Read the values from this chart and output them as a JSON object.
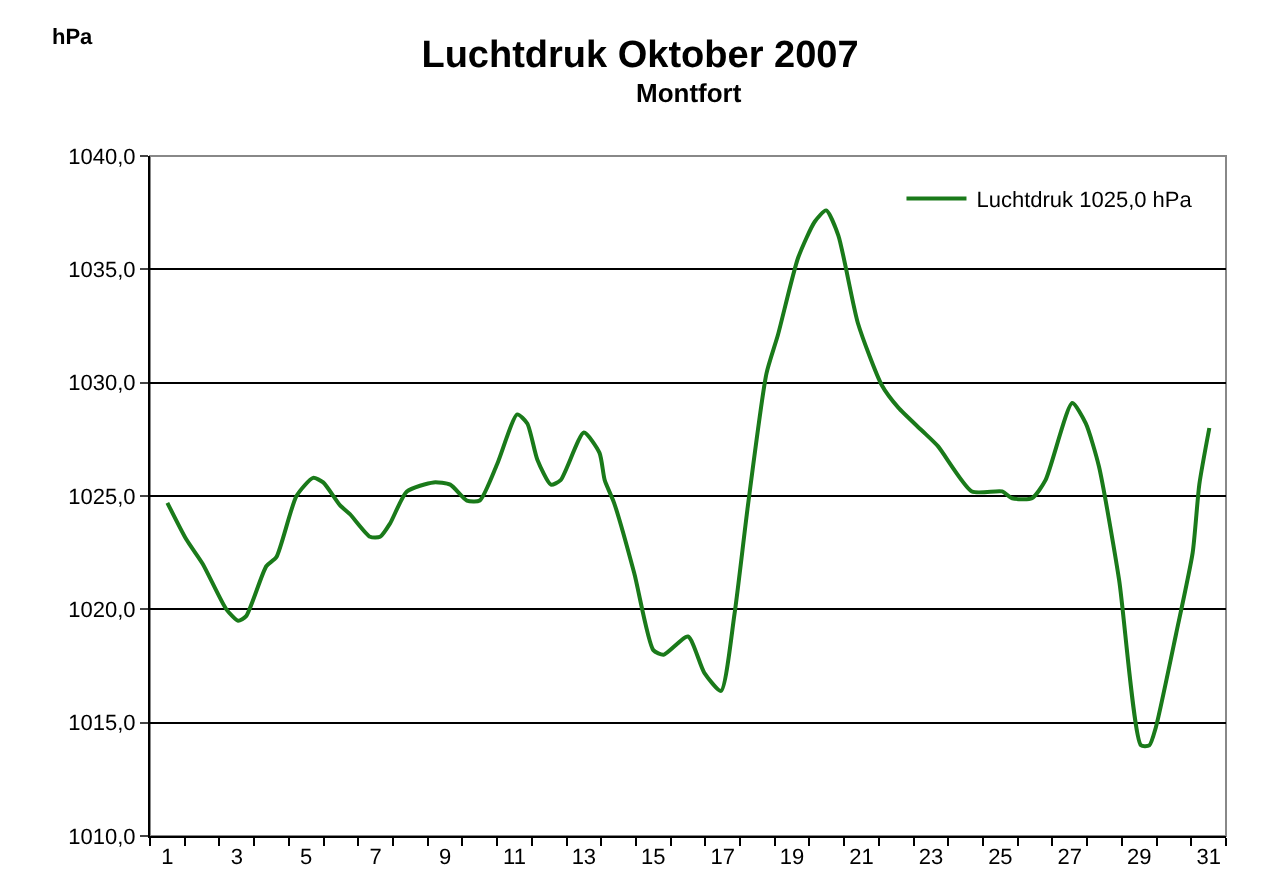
{
  "chart_data": {
    "type": "line",
    "title": "Luchtdruk Oktober 2007",
    "subtitle": "Montfort",
    "ylabel": "hPa",
    "xlim": [
      0.5,
      31.5
    ],
    "xticks": [
      1,
      3,
      5,
      7,
      9,
      11,
      13,
      15,
      17,
      19,
      21,
      23,
      25,
      27,
      29,
      31
    ],
    "ylim": [
      1010,
      1040
    ],
    "yticks": [
      {
        "value": 1010,
        "label": "1010,0"
      },
      {
        "value": 1015,
        "label": "1015,0"
      },
      {
        "value": 1020,
        "label": "1020,0"
      },
      {
        "value": 1025,
        "label": "1025,0"
      },
      {
        "value": 1030,
        "label": "1030,0"
      },
      {
        "value": 1035,
        "label": "1035,0"
      },
      {
        "value": 1040,
        "label": "1040,0"
      }
    ],
    "grid": "y",
    "legend": "top right",
    "marker": "none",
    "line_style": "solid",
    "series": [
      {
        "name": "Luchtdruk 1025,0 hPa",
        "color": "#1a7a1a",
        "x": [
          1,
          1.54,
          2.02,
          2.7,
          3.04,
          3.27,
          3.85,
          4.14,
          4.72,
          5.2,
          5.49,
          5.97,
          6.26,
          6.84,
          7.13,
          7.42,
          7.9,
          8.67,
          9.15,
          9.63,
          10.0,
          10.5,
          11.08,
          11.37,
          11.66,
          12.05,
          12.33,
          13.0,
          13.45,
          13.6,
          13.87,
          14.45,
          15.0,
          15.3,
          16.0,
          16.47,
          16.95,
          17.34,
          17.72,
          18.26,
          18.59,
          19.17,
          19.65,
          19.98,
          20.33,
          20.9,
          21.58,
          22.06,
          22.73,
          23.2,
          24.18,
          25.05,
          25.34,
          25.91,
          26.3,
          27.07,
          27.46,
          27.84,
          28.42,
          29.05,
          29.29,
          29.48,
          30.06,
          30.54,
          30.73,
          31.02
        ],
        "values": [
          1024.7,
          1023.1,
          1022.0,
          1020.0,
          1019.5,
          1019.7,
          1021.9,
          1022.3,
          1025.0,
          1025.8,
          1025.6,
          1024.6,
          1024.2,
          1023.2,
          1023.2,
          1023.8,
          1025.2,
          1025.6,
          1025.5,
          1024.8,
          1024.8,
          1026.4,
          1028.6,
          1028.2,
          1026.6,
          1025.5,
          1025.7,
          1027.8,
          1026.9,
          1025.7,
          1024.7,
          1021.6,
          1018.2,
          1018.0,
          1018.8,
          1017.2,
          1016.4,
          1019.8,
          1024.5,
          1030.4,
          1032.1,
          1035.5,
          1037.1,
          1037.6,
          1036.5,
          1032.6,
          1029.9,
          1028.9,
          1027.9,
          1027.2,
          1025.2,
          1025.2,
          1024.9,
          1024.9,
          1025.7,
          1029.1,
          1028.2,
          1026.3,
          1021.3,
          1014.0,
          1014.0,
          1014.8,
          1018.9,
          1022.5,
          1025.5,
          1028.0
        ]
      }
    ]
  }
}
